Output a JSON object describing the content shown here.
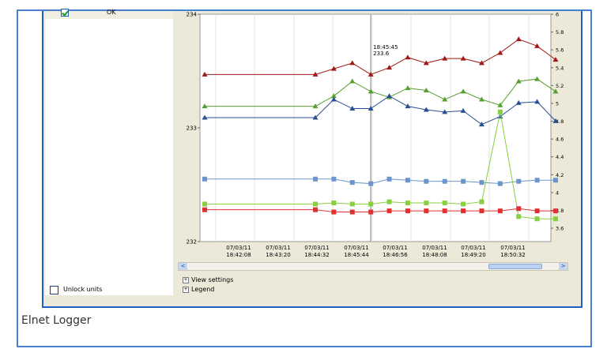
{
  "left_panel": {
    "ok_label": "OK",
    "unlock_label": "Unlock units"
  },
  "bottom": {
    "view_settings": "View settings",
    "legend": "Legend",
    "expand_glyph": "+",
    "scroll_left": "<",
    "scroll_right": ">"
  },
  "caption": "Elnet Logger",
  "chart_data": {
    "type": "line",
    "left_axis": {
      "min": 232,
      "max": 234,
      "ticks": [
        "232",
        "233",
        "234"
      ]
    },
    "right_axis": {
      "min": 3.45,
      "max": 6.0,
      "ticks": [
        "3.6",
        "3.8",
        "4",
        "4.2",
        "4.4",
        "4.6",
        "4.8",
        "5",
        "5.2",
        "5.4",
        "5.6",
        "5.8",
        "6"
      ]
    },
    "x_ticks": [
      {
        "date": "07/03/11",
        "time": "18:42:08"
      },
      {
        "date": "07/03/11",
        "time": "18:43:20"
      },
      {
        "date": "07/03/11",
        "time": "18:44:32"
      },
      {
        "date": "07/03/11",
        "time": "18:45:44"
      },
      {
        "date": "07/03/11",
        "time": "18:46:56"
      },
      {
        "date": "07/03/11",
        "time": "18:48:08"
      },
      {
        "date": "07/03/11",
        "time": "18:49:20"
      },
      {
        "date": "07/03/11",
        "time": "18:50:32"
      }
    ],
    "cursor": {
      "time": "18:45:45",
      "value": "233.6"
    },
    "series": [
      {
        "color": "#a01818",
        "marker": "triangle",
        "axis": "left",
        "values": [
          233.47,
          233.47,
          233.47,
          233.47,
          233.47,
          233.47,
          233.52,
          233.57,
          233.47,
          233.53,
          233.62,
          233.57,
          233.61,
          233.61,
          233.57,
          233.66,
          233.78,
          233.72,
          233.6
        ]
      },
      {
        "color": "#55a030",
        "marker": "triangle",
        "axis": "left",
        "values": [
          233.19,
          233.19,
          233.19,
          233.19,
          233.19,
          233.19,
          233.28,
          233.41,
          233.32,
          233.27,
          233.35,
          233.33,
          233.25,
          233.32,
          233.25,
          233.2,
          233.41,
          233.43,
          233.32
        ]
      },
      {
        "color": "#284f92",
        "marker": "triangle",
        "axis": "left",
        "values": [
          233.09,
          233.09,
          233.09,
          233.09,
          233.09,
          233.09,
          233.25,
          233.17,
          233.17,
          233.28,
          233.19,
          233.16,
          233.14,
          233.15,
          233.03,
          233.1,
          233.22,
          233.23,
          233.06
        ]
      },
      {
        "color": "#6b96cc",
        "marker": "square",
        "axis": "left",
        "values": [
          232.55,
          232.55,
          232.55,
          232.55,
          232.55,
          232.55,
          232.55,
          232.52,
          232.51,
          232.55,
          232.54,
          232.53,
          232.53,
          232.53,
          232.52,
          232.51,
          232.53,
          232.54,
          232.54
        ]
      },
      {
        "color": "#88d040",
        "marker": "square",
        "axis": "left",
        "values": [
          232.33,
          232.33,
          232.33,
          232.33,
          232.33,
          232.33,
          232.34,
          232.33,
          232.33,
          232.35,
          232.34,
          232.34,
          232.34,
          232.33,
          232.35,
          233.14,
          232.22,
          232.2,
          232.2
        ]
      },
      {
        "color": "#e03030",
        "marker": "square",
        "axis": "left",
        "values": [
          232.28,
          232.28,
          232.28,
          232.28,
          232.28,
          232.28,
          232.26,
          232.26,
          232.26,
          232.27,
          232.27,
          232.27,
          232.27,
          232.27,
          232.27,
          232.27,
          232.29,
          232.27,
          232.27
        ]
      }
    ]
  }
}
